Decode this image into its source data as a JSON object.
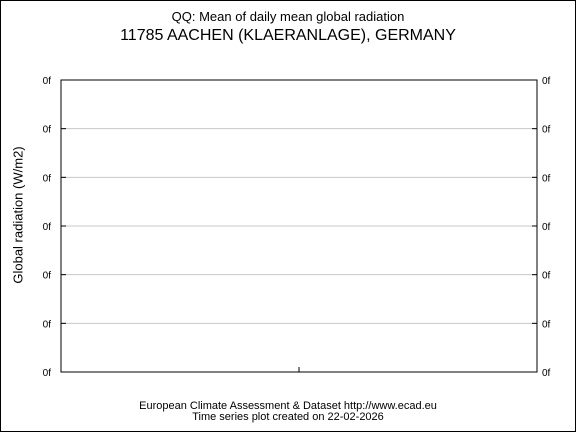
{
  "title_line1": "QQ: Mean of daily mean global radiation",
  "title_line2": "11785 AACHEN (KLAERANLAGE), GERMANY",
  "footer_line1": "European Climate Assessment & Dataset  http://www.ecad.eu",
  "footer_line2": "Time series plot created on 22-02-2026",
  "chart_data": {
    "type": "line",
    "title": "QQ: Mean of daily mean global radiation",
    "subtitle": "11785 AACHEN (KLAERANLAGE), GERMANY",
    "xlabel": "",
    "ylabel": "Global radiation (W/m2)",
    "yticks": [
      "0f",
      "0f",
      "0f",
      "0f",
      "0f",
      "0f",
      "0f"
    ],
    "yticks_right": [
      "0f",
      "0f",
      "0f",
      "0f",
      "0f",
      "0f",
      "0f"
    ],
    "xticks": [
      ""
    ],
    "series": [],
    "grid": true,
    "grid_color": "#c8c8c8"
  }
}
